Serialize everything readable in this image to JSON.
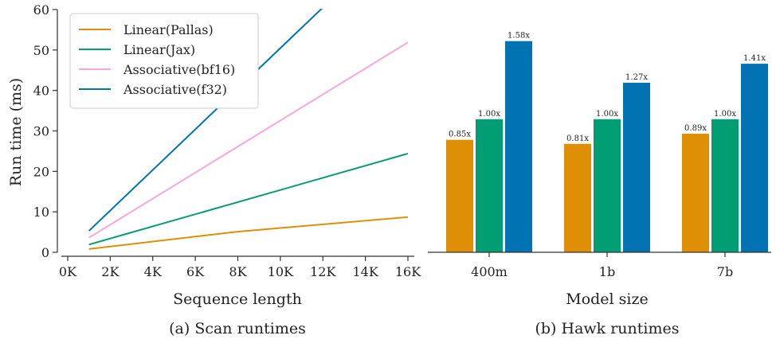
{
  "chart_data": [
    {
      "type": "line",
      "caption": "(a)  Scan runtimes",
      "xlabel": "Sequence length",
      "ylabel": "Run time (ms)",
      "xlim": [
        0,
        16000
      ],
      "ylim": [
        0,
        60
      ],
      "xticks": [
        0,
        2000,
        4000,
        6000,
        8000,
        10000,
        12000,
        14000,
        16000
      ],
      "xtick_labels": [
        "0K",
        "2K",
        "4K",
        "6K",
        "8K",
        "10K",
        "12K",
        "14K",
        "16K"
      ],
      "yticks": [
        0,
        10,
        20,
        30,
        40,
        50,
        60
      ],
      "ytick_labels": [
        "0",
        "10",
        "20",
        "30",
        "40",
        "50",
        "60"
      ],
      "grid": false,
      "legend_position": "top-left",
      "series": [
        {
          "name": "Linear(Pallas)",
          "color": "#de8f05",
          "x": [
            1000,
            8000,
            16000
          ],
          "y": [
            0.8,
            5.1,
            8.7
          ]
        },
        {
          "name": "Linear(Jax)",
          "color": "#029e73",
          "x": [
            1000,
            16000
          ],
          "y": [
            1.9,
            24.4
          ]
        },
        {
          "name": "Associative(bf16)",
          "color": "#f7a8d8",
          "x": [
            1000,
            16000
          ],
          "y": [
            3.6,
            51.9
          ]
        },
        {
          "name": "Associative(f32)",
          "color": "#0173b2",
          "x": [
            1000,
            12000
          ],
          "y": [
            5.3,
            60.5
          ]
        }
      ]
    },
    {
      "type": "bar",
      "caption": "(b)  Hawk runtimes",
      "xlabel": "Model size",
      "categories": [
        "400m",
        "1b",
        "7b"
      ],
      "ylim": [
        0,
        60
      ],
      "grid": false,
      "colors": [
        "#de8f05",
        "#029e73",
        "#0173b2"
      ],
      "series": [
        {
          "values": [
            27.8,
            26.8,
            29.3
          ],
          "labels": [
            "0.85x",
            "0.81x",
            "0.89x"
          ]
        },
        {
          "values": [
            32.9,
            32.9,
            32.9
          ],
          "labels": [
            "1.00x",
            "1.00x",
            "1.00x"
          ]
        },
        {
          "values": [
            52.2,
            41.9,
            46.6
          ],
          "labels": [
            "1.58x",
            "1.27x",
            "1.41x"
          ]
        }
      ]
    }
  ]
}
